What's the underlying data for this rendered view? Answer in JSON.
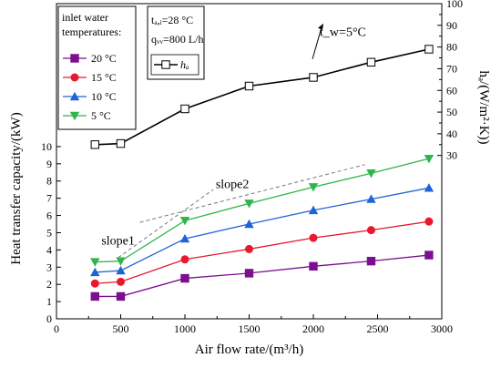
{
  "chart_data": {
    "type": "line",
    "xlabel": "Air flow rate/(m³/h)",
    "ylabel": "Heat transfer capacity/(kW)",
    "y2label": "hₐ/(W/m²·K))",
    "xlim": [
      0,
      3000
    ],
    "ylim": [
      0,
      18.3
    ],
    "y2lim": [
      -45.3,
      100
    ],
    "xticks": [
      0,
      500,
      1000,
      1500,
      2000,
      2500,
      3000
    ],
    "yticks": [
      0,
      1,
      2,
      3,
      4,
      5,
      6,
      7,
      8,
      9,
      10
    ],
    "y2ticks": [
      30,
      40,
      50,
      60,
      70,
      80,
      90,
      100
    ],
    "grid": false,
    "legend_title": "inlet water temperatures:",
    "legend_position": "top-left",
    "series": [
      {
        "name": "20 °C",
        "axis": "left",
        "marker": "square-filled",
        "color": "#7b0f8f",
        "x": [
          300,
          500,
          1000,
          1500,
          2000,
          2450,
          2900
        ],
        "y": [
          1.3,
          1.3,
          2.35,
          2.65,
          3.05,
          3.35,
          3.7
        ]
      },
      {
        "name": "15 °C",
        "axis": "left",
        "marker": "circle-filled",
        "color": "#e8192c",
        "x": [
          300,
          500,
          1000,
          1500,
          2000,
          2450,
          2900
        ],
        "y": [
          2.05,
          2.15,
          3.45,
          4.05,
          4.7,
          5.15,
          5.65
        ]
      },
      {
        "name": "10 °C",
        "axis": "left",
        "marker": "triangle-up-filled",
        "color": "#1f64d6",
        "x": [
          300,
          500,
          1000,
          1500,
          2000,
          2450,
          2900
        ],
        "y": [
          2.7,
          2.8,
          4.65,
          5.5,
          6.3,
          6.95,
          7.6
        ]
      },
      {
        "name": "5 °C",
        "axis": "left",
        "marker": "triangle-down-filled",
        "color": "#2fb54a",
        "x": [
          300,
          500,
          1000,
          1500,
          2000,
          2450,
          2900
        ],
        "y": [
          3.3,
          3.35,
          5.7,
          6.7,
          7.65,
          8.45,
          9.3
        ]
      },
      {
        "name": "hₐ",
        "axis": "right",
        "marker": "square-open",
        "color": "#000000",
        "x": [
          300,
          500,
          1000,
          1500,
          2000,
          2450,
          2900
        ],
        "y": [
          35,
          35.5,
          51.5,
          62,
          66,
          73,
          79
        ]
      }
    ],
    "conditions": [
      "tₐ,ᵢ=28 °C",
      "qᵥᵥ=800 L/h"
    ],
    "annotations": [
      {
        "text": "slope1",
        "x": 350,
        "y": 4.3
      },
      {
        "text": "slope2",
        "x": 1240,
        "y": 7.6
      },
      {
        "text": "t_w=5°C",
        "x": 2050,
        "y": 85
      }
    ],
    "slope_lines": [
      {
        "x": [
          480,
          1220
        ],
        "y": [
          3.55,
          7.5
        ]
      },
      {
        "x": [
          650,
          2400
        ],
        "y": [
          5.6,
          8.95
        ]
      }
    ]
  }
}
